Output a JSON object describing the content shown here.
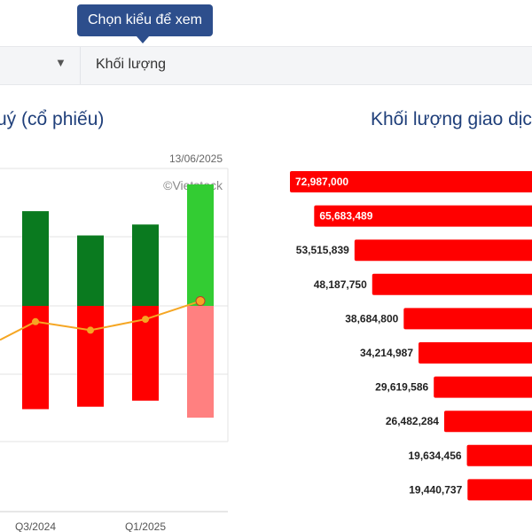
{
  "header": {
    "tooltip": "Chọn kiểu để xem",
    "selector_value": "Khối lượng",
    "selector_arrow_icon": "caret-down-icon"
  },
  "left_panel": {
    "title": "uý (cổ phiếu)",
    "date": "13/06/2025",
    "watermark": "©Vietstock"
  },
  "right_panel": {
    "title": "Khối lượng giao dịc"
  },
  "colors": {
    "dark_green": "#0a7a1f",
    "light_green": "#33cc33",
    "red": "#ff0000",
    "light_red": "#ff8080",
    "line": "#f5a623",
    "bar_red": "#ff0000"
  },
  "chart_data": [
    {
      "type": "bar",
      "visible_x_labels": [
        "Q3/2024",
        "Q1/2025"
      ],
      "series": [
        {
          "values": [
            0.78,
            0.58,
            0.67,
            1.0
          ]
        },
        {
          "values": [
            -0.85,
            -0.83,
            -0.78,
            -0.92
          ]
        }
      ],
      "line_values": [
        -0.13,
        -0.2,
        -0.11,
        0.04
      ],
      "grid": true
    },
    {
      "type": "bar",
      "orientation": "horizontal",
      "values": [
        72987000,
        65683489,
        53515839,
        48187750,
        38684800,
        34214987,
        29619586,
        26482284,
        19634456,
        19440737
      ],
      "labels": [
        "72,987,000",
        "65,683,489",
        "53,515,839",
        "48,187,750",
        "38,684,800",
        "34,214,987",
        "29,619,586",
        "26,482,284",
        "19,634,456",
        "19,440,737"
      ]
    }
  ]
}
